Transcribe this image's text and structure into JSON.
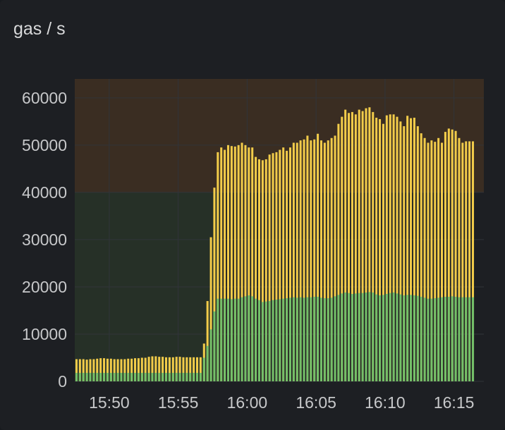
{
  "panel": {
    "title": "gas / s"
  },
  "colors": {
    "background": "#1d1f23",
    "total_bar": "#f2cc4a",
    "base_bar": "#73bf69",
    "threshold_high": "#3a2d22",
    "threshold_low": "#263027",
    "grid": "#31343a",
    "tick_text": "#c7c8ca"
  },
  "chart_data": {
    "type": "bar",
    "stacked": false,
    "title": "gas / s",
    "x_unit": "time (HH:MM)",
    "x_start": "15:47:30",
    "x_end": "16:17:10",
    "bar_interval_seconds": 15,
    "x_ticks": [
      "15:50",
      "15:55",
      "16:00",
      "16:05",
      "16:10",
      "16:15"
    ],
    "ylim": [
      0,
      64000
    ],
    "y_ticks": [
      0,
      10000,
      20000,
      30000,
      40000,
      50000,
      60000
    ],
    "grid": true,
    "legend": "none",
    "thresholds": [
      {
        "from": 0,
        "to": 40000,
        "color": "#263027",
        "until": "15:58:00"
      },
      {
        "from": 40000,
        "to": 64000,
        "color": "#3a2d22"
      }
    ],
    "series": [
      {
        "color": "#f2cc4a",
        "values": [
          4700,
          4700,
          4700,
          4600,
          4700,
          4700,
          4800,
          4900,
          4900,
          4800,
          4800,
          4700,
          4700,
          4700,
          4700,
          4800,
          4800,
          4900,
          4900,
          5000,
          5000,
          5200,
          5300,
          5300,
          5200,
          5200,
          5100,
          5100,
          5100,
          5200,
          5200,
          5100,
          5100,
          5100,
          5100,
          5100,
          5100,
          8000,
          17000,
          30500,
          41000,
          48500,
          49500,
          49000,
          50000,
          49800,
          49700,
          50000,
          50500,
          50000,
          49500,
          49500,
          47500,
          47000,
          46800,
          47000,
          48000,
          48300,
          48500,
          49000,
          49500,
          48800,
          49500,
          50500,
          50500,
          51000,
          51200,
          52000,
          51000,
          51200,
          52400,
          51000,
          50500,
          51000,
          51500,
          52000,
          54500,
          56000,
          57500,
          56800,
          57000,
          56500,
          57500,
          57200,
          57800,
          58000,
          57000,
          55800,
          55500,
          54500,
          56300,
          56500,
          56500,
          56000,
          55000,
          54000,
          56200,
          55700,
          55800,
          54000,
          52500,
          51500,
          50500,
          51000,
          50700,
          51500,
          50500,
          52800,
          53500,
          53300,
          53000,
          51500,
          50500,
          50800,
          50800,
          50800
        ]
      },
      {
        "color": "#73bf69",
        "values": [
          1800,
          1800,
          1800,
          1800,
          1800,
          1800,
          1800,
          1800,
          1800,
          1800,
          1800,
          1800,
          1800,
          1800,
          1800,
          1800,
          1800,
          1800,
          1800,
          1800,
          1800,
          1800,
          1800,
          1800,
          1800,
          1800,
          1800,
          1800,
          1800,
          1800,
          1800,
          1800,
          1800,
          1800,
          1800,
          1800,
          1800,
          5000,
          7500,
          11000,
          14800,
          17500,
          17500,
          17500,
          17500,
          17400,
          17500,
          17500,
          17800,
          18000,
          18200,
          18000,
          17500,
          17200,
          16800,
          16900,
          17000,
          17200,
          17300,
          17400,
          17500,
          17600,
          17700,
          17800,
          17700,
          17800,
          17700,
          17800,
          17800,
          17900,
          17900,
          17700,
          17600,
          17600,
          17700,
          18000,
          18300,
          18600,
          18800,
          18700,
          18500,
          18600,
          18700,
          18700,
          18800,
          18900,
          18800,
          18400,
          18200,
          18300,
          18500,
          18700,
          18800,
          18600,
          18400,
          18200,
          18300,
          18300,
          18200,
          18100,
          17900,
          17700,
          17500,
          17500,
          17600,
          17700,
          17800,
          17900,
          17900,
          18000,
          17900,
          17800,
          17800,
          17800,
          17800,
          17800
        ]
      }
    ]
  }
}
